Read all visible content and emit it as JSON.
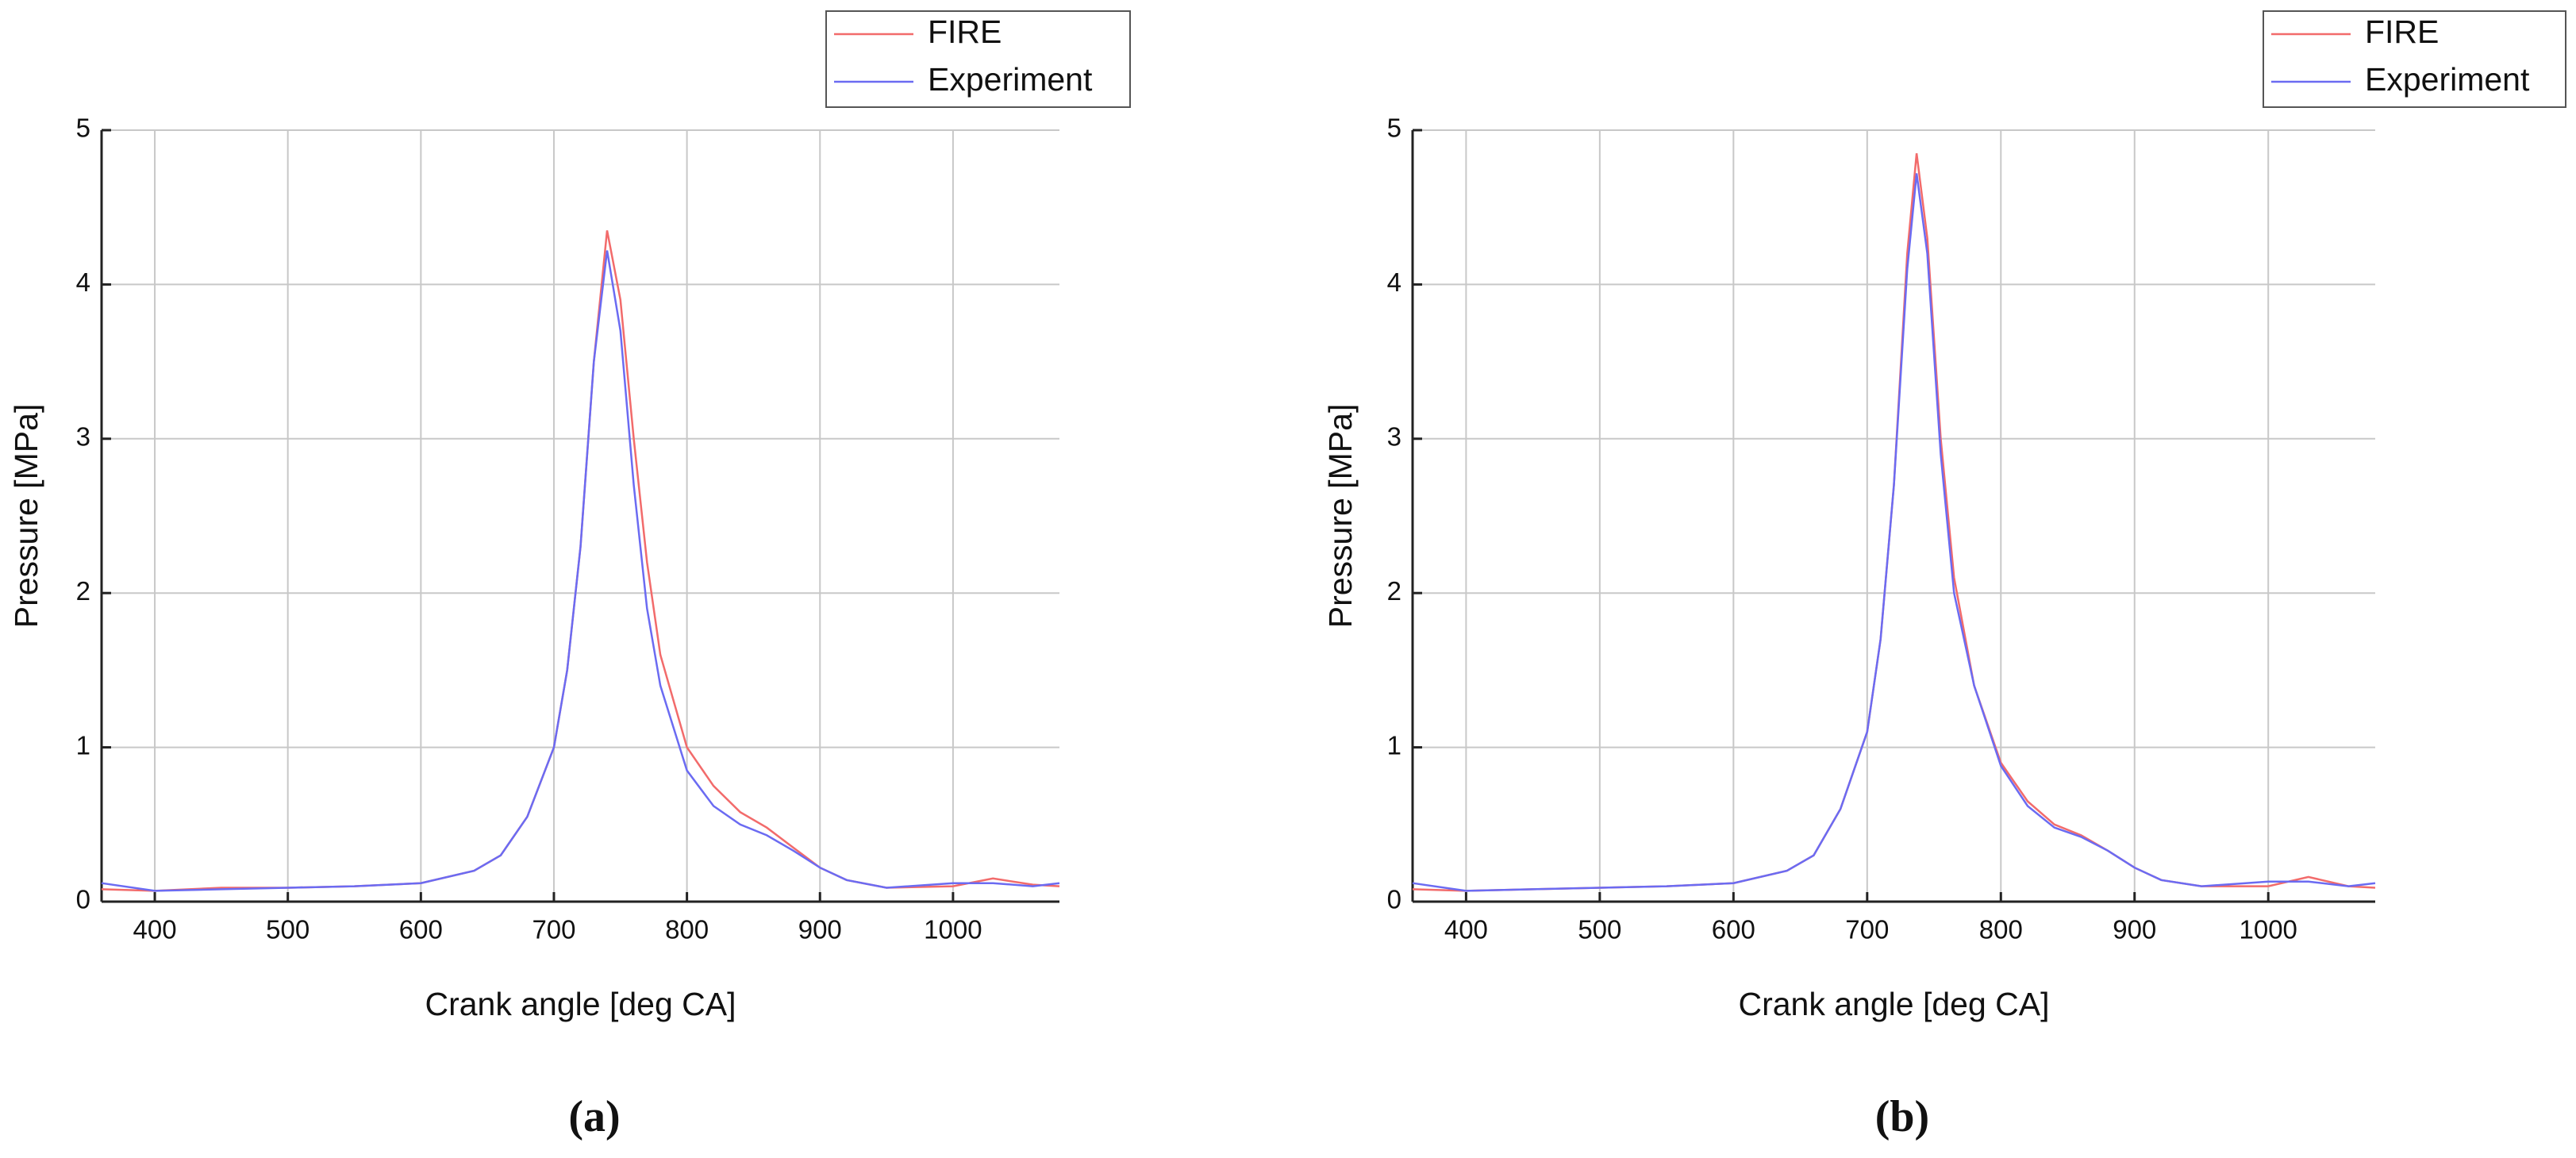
{
  "chart_data": [
    {
      "type": "line",
      "caption": "(a)",
      "x_label": "Crank angle [deg CA]",
      "y_label": "Pressure [MPa]",
      "x": [
        360,
        400,
        450,
        500,
        550,
        600,
        640,
        660,
        680,
        700,
        710,
        720,
        730,
        740,
        750,
        760,
        770,
        780,
        800,
        820,
        840,
        860,
        880,
        900,
        920,
        950,
        1000,
        1030,
        1060,
        1080
      ],
      "series": [
        {
          "name": "FIRE",
          "color": "#f26b6b",
          "values": [
            0.08,
            0.07,
            0.09,
            0.09,
            0.1,
            0.12,
            0.2,
            0.3,
            0.55,
            1.0,
            1.5,
            2.3,
            3.5,
            4.35,
            3.9,
            3.0,
            2.2,
            1.6,
            1.0,
            0.75,
            0.58,
            0.48,
            0.35,
            0.22,
            0.14,
            0.09,
            0.1,
            0.15,
            0.11,
            0.1
          ]
        },
        {
          "name": "Experiment",
          "color": "#6b6bf2",
          "values": [
            0.12,
            0.07,
            0.08,
            0.09,
            0.1,
            0.12,
            0.2,
            0.3,
            0.55,
            1.0,
            1.5,
            2.3,
            3.5,
            4.22,
            3.7,
            2.7,
            1.9,
            1.4,
            0.85,
            0.62,
            0.5,
            0.43,
            0.33,
            0.22,
            0.14,
            0.09,
            0.12,
            0.12,
            0.1,
            0.12
          ]
        }
      ],
      "xlim": [
        360,
        1080
      ],
      "ylim": [
        0,
        5
      ],
      "xticks": [
        400,
        500,
        600,
        700,
        800,
        900,
        1000
      ],
      "yticks": [
        0,
        1,
        2,
        3,
        4,
        5
      ],
      "grid": true
    },
    {
      "type": "line",
      "caption": "(b)",
      "x_label": "Crank angle [deg CA]",
      "y_label": "Pressure [MPa]",
      "x": [
        360,
        400,
        450,
        500,
        550,
        600,
        640,
        660,
        680,
        700,
        710,
        720,
        730,
        737,
        745,
        755,
        765,
        780,
        800,
        820,
        840,
        860,
        880,
        900,
        920,
        950,
        1000,
        1030,
        1060,
        1080
      ],
      "series": [
        {
          "name": "FIRE",
          "color": "#f26b6b",
          "values": [
            0.08,
            0.07,
            0.08,
            0.09,
            0.1,
            0.12,
            0.2,
            0.3,
            0.6,
            1.1,
            1.7,
            2.7,
            4.2,
            4.85,
            4.3,
            3.0,
            2.1,
            1.4,
            0.9,
            0.65,
            0.5,
            0.43,
            0.33,
            0.22,
            0.14,
            0.1,
            0.1,
            0.16,
            0.1,
            0.09
          ]
        },
        {
          "name": "Experiment",
          "color": "#6b6bf2",
          "values": [
            0.12,
            0.07,
            0.08,
            0.09,
            0.1,
            0.12,
            0.2,
            0.3,
            0.6,
            1.1,
            1.7,
            2.7,
            4.1,
            4.72,
            4.2,
            2.9,
            2.0,
            1.4,
            0.88,
            0.62,
            0.48,
            0.42,
            0.33,
            0.22,
            0.14,
            0.1,
            0.13,
            0.13,
            0.1,
            0.12
          ]
        }
      ],
      "xlim": [
        360,
        1080
      ],
      "ylim": [
        0,
        5
      ],
      "xticks": [
        400,
        500,
        600,
        700,
        800,
        900,
        1000
      ],
      "yticks": [
        0,
        1,
        2,
        3,
        4,
        5
      ],
      "grid": true
    }
  ]
}
